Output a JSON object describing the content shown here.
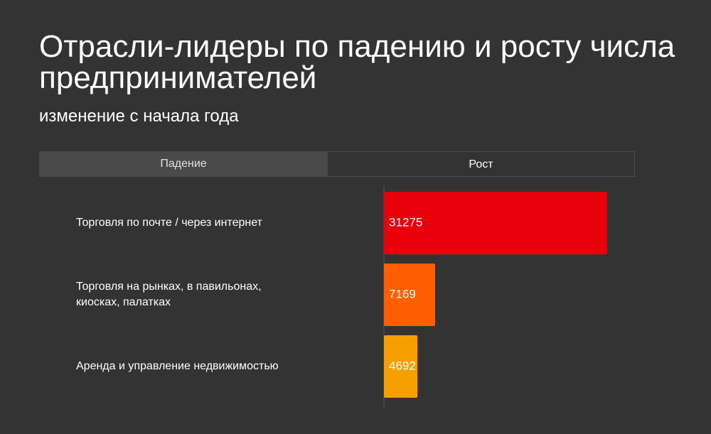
{
  "header": {
    "title": "Отрасли-лидеры по падению и росту числа предпринимателей",
    "subtitle": "изменение с начала года"
  },
  "tabs": [
    {
      "label": "Падение",
      "active": false
    },
    {
      "label": "Рост",
      "active": true
    }
  ],
  "colors": {
    "background": "#333333",
    "bars": [
      "#e8000b",
      "#ff5f00",
      "#f5a000"
    ]
  },
  "chart_data": {
    "type": "bar",
    "orientation": "horizontal",
    "categories": [
      [
        "Торговля по почте / через интернет"
      ],
      [
        "Торговля на рынках, в павильонах,",
        "киосках, палатках"
      ],
      [
        "Аренда и управление недвижимостью"
      ]
    ],
    "values": [
      31275,
      7169,
      4692
    ],
    "xlim": [
      0,
      31275
    ],
    "grid": false,
    "legend": "none"
  }
}
